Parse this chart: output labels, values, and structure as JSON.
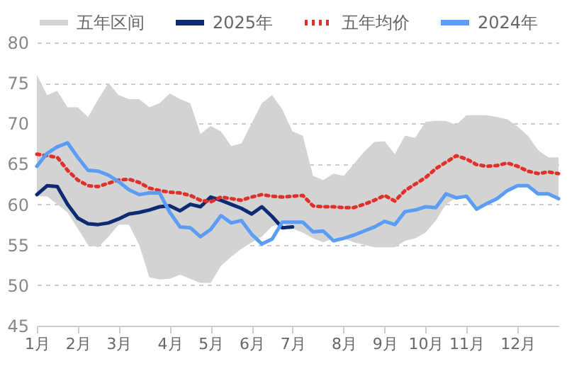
{
  "chart_data": {
    "type": "line",
    "categories": [
      "1月",
      null,
      null,
      null,
      "2月",
      null,
      null,
      null,
      "3月",
      null,
      null,
      null,
      null,
      "4月",
      null,
      null,
      null,
      "5月",
      null,
      null,
      null,
      "6月",
      null,
      null,
      null,
      "7月",
      null,
      null,
      null,
      null,
      "8月",
      null,
      null,
      null,
      "9月",
      null,
      null,
      null,
      "10月",
      null,
      null,
      null,
      "11月",
      null,
      null,
      null,
      null,
      "12月",
      null,
      null,
      null,
      null
    ],
    "ylim": [
      45,
      80
    ],
    "yticks": [
      45,
      50,
      55,
      60,
      65,
      70,
      75,
      80
    ],
    "grid": "y",
    "legend": "top",
    "marker": "none",
    "series": [
      {
        "name": "五年区间",
        "type": "area",
        "color": "#d3d3d3",
        "values": [
          null,
          null,
          null,
          null,
          null,
          null,
          null,
          null,
          null,
          null,
          null,
          null,
          null,
          null,
          null,
          null,
          null,
          null,
          null,
          null,
          null,
          null,
          null,
          null,
          null,
          null,
          null,
          null,
          null,
          null,
          null,
          null,
          null,
          null,
          null,
          null,
          null,
          null,
          null,
          null,
          null,
          null,
          null,
          null,
          null,
          null,
          null,
          null,
          null,
          null,
          null,
          null
        ],
        "upper": [
          76,
          73.5,
          74,
          72,
          72,
          70.8,
          73,
          75,
          73.5,
          73,
          73,
          72,
          72.5,
          73.7,
          73,
          72.5,
          68.7,
          69.7,
          69,
          67.2,
          67.5,
          70,
          72.5,
          73.5,
          71.7,
          69,
          68.5,
          63.5,
          63,
          63.8,
          63.5,
          65,
          66.5,
          67.7,
          67.8,
          66.2,
          68.5,
          68.2,
          70.2,
          70.3,
          70.3,
          69.8,
          71,
          71,
          71,
          70.8,
          70.5,
          69.6,
          68.5,
          66.7,
          65.8,
          65.8
        ],
        "lower": [
          61,
          61,
          60,
          59,
          57,
          55,
          54.7,
          56,
          57.5,
          57.5,
          55,
          51,
          50.7,
          50.8,
          51.3,
          50.8,
          50.3,
          50.3,
          52.4,
          53.5,
          54.5,
          55.3,
          56,
          57.3,
          57.6,
          57,
          56.5,
          55.8,
          55.3,
          55.8,
          55.8,
          55.3,
          55,
          54.7,
          54.7,
          54.7,
          55.5,
          55.8,
          56.5,
          58,
          60,
          60.8,
          61,
          59.4,
          60.1,
          60.7,
          61.7,
          62.3,
          62.3,
          61.3,
          61.3,
          60.7
        ]
      },
      {
        "name": "2025年",
        "color": "#0d2a73",
        "line_style": "solid",
        "values": [
          61.2,
          62.3,
          62.2,
          60,
          58.3,
          57.6,
          57.5,
          57.7,
          58.2,
          58.8,
          59,
          59.3,
          59.7,
          59.8,
          59.2,
          60,
          59.7,
          60.9,
          60.5,
          60,
          59.5,
          58.8,
          59.7,
          58.5,
          57.1,
          57.2,
          null,
          null,
          null,
          null,
          null,
          null,
          null,
          null,
          null,
          null,
          null,
          null,
          null,
          null,
          null,
          null,
          null,
          null,
          null,
          null,
          null,
          null,
          null,
          null,
          null,
          null
        ]
      },
      {
        "name": "五年均价",
        "color": "#e0302a",
        "line_style": "dotted",
        "values": [
          66.2,
          66,
          65.8,
          64.2,
          63,
          62.3,
          62.2,
          62.6,
          63,
          63.1,
          62.7,
          62,
          61.7,
          61.5,
          61.4,
          61.1,
          60.5,
          60.3,
          60.9,
          60.7,
          60.5,
          60.9,
          61.2,
          61,
          60.9,
          61,
          61.1,
          59.8,
          59.7,
          59.7,
          59.6,
          59.6,
          60,
          60.5,
          61.1,
          60.4,
          61.7,
          62.5,
          63.3,
          64.4,
          65.2,
          66,
          65.6,
          64.9,
          64.7,
          64.8,
          65.1,
          64.7,
          64.1,
          63.8,
          64,
          63.8
        ]
      },
      {
        "name": "2024年",
        "color": "#5b9cf5",
        "line_style": "solid",
        "values": [
          64.7,
          66.3,
          67.1,
          67.6,
          65.8,
          64.2,
          64.1,
          63.6,
          62.8,
          61.8,
          61.2,
          61.4,
          61.4,
          59,
          57.2,
          57.1,
          56,
          56.9,
          58.6,
          57.7,
          58,
          56.3,
          55.1,
          55.7,
          57.8,
          57.8,
          57.8,
          56.6,
          56.7,
          55.5,
          55.8,
          56.2,
          56.7,
          57.2,
          57.9,
          57.5,
          59.1,
          59.3,
          59.7,
          59.6,
          61.3,
          60.8,
          61,
          59.4,
          60.1,
          60.7,
          61.7,
          62.3,
          62.3,
          61.3,
          61.3,
          60.7
        ]
      }
    ]
  }
}
